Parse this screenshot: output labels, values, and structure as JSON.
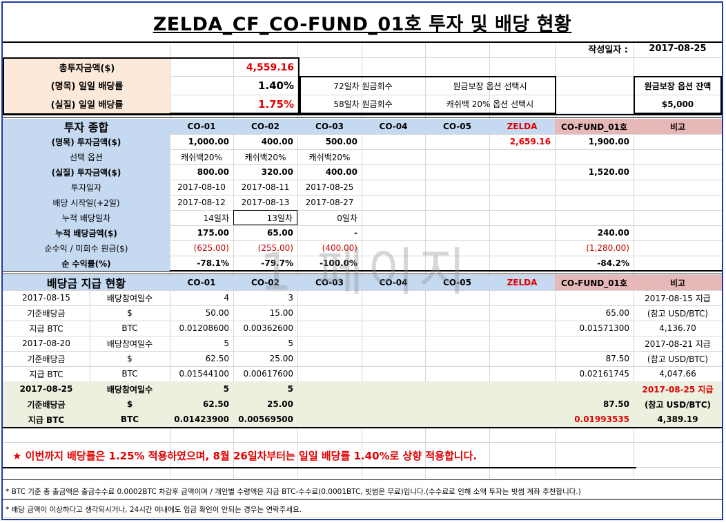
{
  "title": "ZELDA_CF_CO-FUND_01호 투자 및 배당 현황",
  "date_label": "작성일자 :",
  "date_value": "2017-08-25",
  "summary": {
    "total_label": "총투자금액($)",
    "total_value": "4,559.16",
    "nominal_label": "(명목) 일일 배당률",
    "nominal_value": "1.40%",
    "real_label": "(실질) 일일 배당률",
    "real_value": "1.75%",
    "recover72": "72일차 원금회수",
    "recover58": "58일차 원금회수",
    "opt1": "원금보장 옵션 선택시",
    "opt2": "캐쉬백 20% 옵션 선택시",
    "balance_label": "원금보장 옵션 잔액",
    "balance_value": "$5,000"
  },
  "invest": {
    "section_label": "투자 종합",
    "headers": [
      "CO-01",
      "CO-02",
      "CO-03",
      "CO-04",
      "CO-05",
      "ZELDA",
      "CO-FUND_01호",
      "비고"
    ],
    "rows": [
      {
        "label": "(명목) 투자금액($)",
        "cells": [
          "1,000.00",
          "400.00",
          "500.00",
          "",
          "",
          "2,659.16",
          "1,900.00",
          ""
        ]
      },
      {
        "label": "선택 옵션",
        "cells": [
          "캐쉬백20%",
          "캐쉬백20%",
          "캐쉬백20%",
          "",
          "",
          "",
          "",
          ""
        ]
      },
      {
        "label": "(실질) 투자금액($)",
        "cells": [
          "800.00",
          "320.00",
          "400.00",
          "",
          "",
          "",
          "1,520.00",
          ""
        ]
      },
      {
        "label": "투자일자",
        "cells": [
          "2017-08-10",
          "2017-08-11",
          "2017-08-25",
          "",
          "",
          "",
          "",
          ""
        ]
      },
      {
        "label": "배당 시작일(+2일)",
        "cells": [
          "2017-08-12",
          "2017-08-13",
          "2017-08-27",
          "",
          "",
          "",
          "",
          ""
        ]
      },
      {
        "label": "누적 배당일차",
        "cells": [
          "14일차",
          "13일차",
          "0일차",
          "",
          "",
          "",
          "",
          ""
        ]
      },
      {
        "label": "누적 배당금액($)",
        "cells": [
          "175.00",
          "65.00",
          "-",
          "",
          "",
          "",
          "240.00",
          ""
        ]
      },
      {
        "label": "순수익 / 미회수 원금($)",
        "cells": [
          "(625.00)",
          "(255.00)",
          "(400.00)",
          "",
          "",
          "",
          "(1,280.00)",
          ""
        ]
      },
      {
        "label": "순 수익률(%)",
        "cells": [
          "-78.1%",
          "-79.7%",
          "-100.0%",
          "",
          "",
          "",
          "-84.2%",
          ""
        ]
      }
    ]
  },
  "dividend": {
    "section_label": "배당금 지급 현황",
    "headers": [
      "CO-01",
      "CO-02",
      "CO-03",
      "CO-04",
      "CO-05",
      "ZELDA",
      "CO-FUND_01호",
      "비고"
    ],
    "rows": [
      {
        "c0": "2017-08-15",
        "c1": "배당참여일수",
        "cells": [
          "4",
          "3",
          "",
          "",
          "",
          "",
          ""
        ],
        "note": "2017-08-15 지급"
      },
      {
        "c0": "기준배당금",
        "c1": "$",
        "cells": [
          "50.00",
          "15.00",
          "",
          "",
          "",
          "",
          "65.00"
        ],
        "note": "(참고 USD/BTC)"
      },
      {
        "c0": "지급 BTC",
        "c1": "BTC",
        "cells": [
          "0.01208600",
          "0.00362600",
          "",
          "",
          "",
          "",
          "0.01571300"
        ],
        "note": "4,136.70"
      },
      {
        "c0": "2017-08-20",
        "c1": "배당참여일수",
        "cells": [
          "5",
          "5",
          "",
          "",
          "",
          "",
          ""
        ],
        "note": "2017-08-21 지급"
      },
      {
        "c0": "기준배당금",
        "c1": "$",
        "cells": [
          "62.50",
          "25.00",
          "",
          "",
          "",
          "",
          "87.50"
        ],
        "note": "(참고 USD/BTC)"
      },
      {
        "c0": "지급 BTC",
        "c1": "BTC",
        "cells": [
          "0.01544100",
          "0.00617600",
          "",
          "",
          "",
          "",
          "0.02161745"
        ],
        "note": "4,047.66"
      },
      {
        "c0": "2017-08-25",
        "c1": "배당참여일수",
        "cells": [
          "5",
          "5",
          "",
          "",
          "",
          "",
          ""
        ],
        "note": "2017-08-25 지급"
      },
      {
        "c0": "기준배당금",
        "c1": "$",
        "cells": [
          "62.50",
          "25.00",
          "",
          "",
          "",
          "",
          "87.50"
        ],
        "note": "(참고 USD/BTC)"
      },
      {
        "c0": "지급 BTC",
        "c1": "BTC",
        "cells": [
          "0.01423900",
          "0.00569500",
          "",
          "",
          "",
          "",
          "0.01993535"
        ],
        "note": "4,389.19"
      }
    ]
  },
  "notice": "★ 이번까지 배당률은 1.25% 적용하였으며, 8월 26일차부터는 일일 배당률 1.40%로 상향 적용합니다.",
  "footnote1": "* BTC 기준 총 출금액은 출금수수료 0.0002BTC 차감후 금액이며 / 개인별 수령액은 지급 BTC-수수료(0.0001BTC, 빗썸은 무료)입니다.(수수료로 인해 소액 투자는 빗썸 계좌 추천합니다.)",
  "footnote2": "* 배당 금액이 이상하다고 생각되시거나, 24시간 이내에도 입금 확인이 안되는 경우는 연락주세요.",
  "watermark": "1 페이지"
}
